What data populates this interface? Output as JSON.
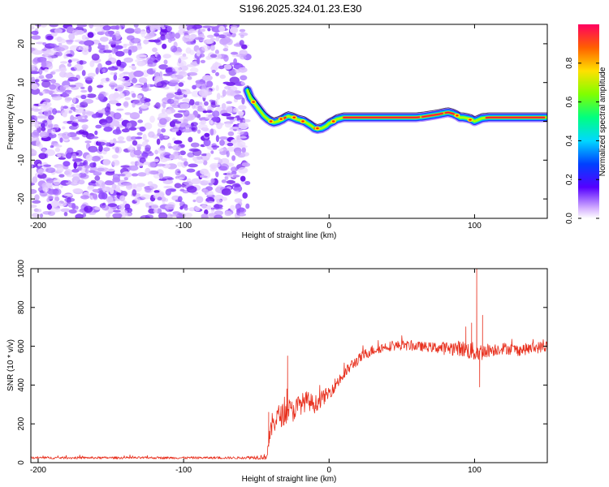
{
  "figure": {
    "title": "S196.2025.324.01.23.E30"
  },
  "chart_data": [
    {
      "type": "heatmap",
      "name": "spectrogram",
      "xlabel": "Height of straight line (km)",
      "ylabel": "Frequency (Hz)",
      "xlim": [
        -205,
        150
      ],
      "ylim": [
        -25,
        25
      ],
      "xticks": [
        -200,
        -100,
        0,
        100
      ],
      "yticks": [
        -20,
        -10,
        0,
        10,
        20
      ],
      "noise_region_x": [
        -205,
        -56
      ],
      "ridge": {
        "x": [
          -56,
          -54,
          -52,
          -50,
          -48,
          -45,
          -42,
          -40,
          -38,
          -35,
          -32,
          -30,
          -28,
          -25,
          -22,
          -20,
          -17,
          -15,
          -12,
          -10,
          -8,
          -5,
          -2,
          0,
          3,
          5,
          8,
          10,
          15,
          20,
          30,
          40,
          50,
          60,
          65,
          70,
          75,
          80,
          82,
          85,
          88,
          90,
          92,
          95,
          98,
          100,
          102,
          105,
          110,
          120,
          130,
          140,
          150
        ],
        "y": [
          8,
          6,
          5,
          4,
          3,
          1.5,
          0.5,
          0,
          -0.3,
          0,
          0.5,
          1,
          1.3,
          1,
          0.5,
          0.3,
          0,
          -0.5,
          -1.2,
          -1.8,
          -2,
          -1.8,
          -1.2,
          -0.5,
          0,
          0.5,
          0.8,
          1,
          1,
          1,
          1,
          1,
          1,
          1,
          1.2,
          1.5,
          1.8,
          2.2,
          2.3,
          2,
          1.5,
          1,
          1,
          0.8,
          0.5,
          0,
          0.3,
          0.8,
          1,
          1,
          1,
          1,
          1
        ]
      },
      "colorbar": {
        "label": "Normalized spectral amplitude",
        "range": [
          0,
          1
        ],
        "ticks": [
          0.0,
          0.2,
          0.4,
          0.6,
          0.8
        ]
      }
    },
    {
      "type": "line",
      "name": "snr",
      "xlabel": "Height of straight line (km)",
      "ylabel": "SNR (10 * v/v)",
      "xlim": [
        -205,
        150
      ],
      "ylim": [
        0,
        1000
      ],
      "xticks": [
        -200,
        -100,
        0,
        100
      ],
      "yticks": [
        0,
        200,
        400,
        600,
        800,
        1000
      ],
      "color": "#e8301e",
      "series": [
        {
          "name": "SNR",
          "envelope_x": [
            -205,
            -60,
            -43,
            -41,
            -39,
            -35,
            -30,
            -28,
            -26,
            -20,
            -15,
            -10,
            -5,
            0,
            5,
            10,
            15,
            20,
            25,
            30,
            35,
            40,
            50,
            60,
            70,
            80,
            90,
            95,
            100,
            105,
            110,
            120,
            130,
            140,
            150
          ],
          "envelope_y": [
            25,
            25,
            30,
            120,
            200,
            240,
            250,
            280,
            260,
            300,
            320,
            300,
            330,
            360,
            410,
            450,
            500,
            530,
            560,
            580,
            590,
            600,
            605,
            600,
            595,
            590,
            590,
            580,
            570,
            570,
            580,
            590,
            580,
            590,
            600
          ],
          "noise_amplitude": [
            6,
            6,
            15,
            40,
            60,
            60,
            60,
            60,
            60,
            55,
            50,
            45,
            40,
            35,
            35,
            30,
            30,
            28,
            28,
            28,
            25,
            25,
            25,
            25,
            25,
            35,
            40,
            45,
            50,
            45,
            35,
            30,
            30,
            30,
            30
          ],
          "spikes": [
            {
              "x": -28.5,
              "y": 550
            },
            {
              "x": -29.0,
              "y": 380
            },
            {
              "x": -41.5,
              "y": 260
            },
            {
              "x": 101.5,
              "y": 1000
            },
            {
              "x": 103.5,
              "y": 390
            },
            {
              "x": 105.5,
              "y": 760
            },
            {
              "x": 98.0,
              "y": 720
            },
            {
              "x": 94.0,
              "y": 700
            }
          ]
        }
      ]
    }
  ]
}
